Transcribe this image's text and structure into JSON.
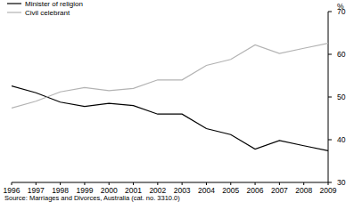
{
  "chart_data": {
    "type": "line",
    "y_label": "%",
    "source": "Source: Marriages and Divorces, Australia (cat. no. 3310.0)",
    "x": [
      1996,
      1997,
      1998,
      1999,
      2000,
      2001,
      2002,
      2003,
      2004,
      2005,
      2006,
      2007,
      2008,
      2009
    ],
    "xlim": [
      1996,
      2009
    ],
    "xticks": [
      1996,
      1997,
      1998,
      1999,
      2000,
      2001,
      2002,
      2003,
      2004,
      2005,
      2006,
      2007,
      2008,
      2009
    ],
    "ylim": [
      30,
      70
    ],
    "yticks": [
      30,
      40,
      50,
      60,
      70
    ],
    "grid": false,
    "legend": "top-left",
    "series": [
      {
        "name": "Minister of religion",
        "color": "#000000",
        "values": [
          52.6,
          51.0,
          48.8,
          47.8,
          48.5,
          48.0,
          46.0,
          46.0,
          42.6,
          41.2,
          37.8,
          39.8,
          38.6,
          37.4
        ]
      },
      {
        "name": "Civil celebrant",
        "color": "#b3b3b3",
        "values": [
          47.4,
          49.0,
          51.2,
          52.2,
          51.5,
          52.0,
          54.0,
          54.0,
          57.4,
          58.8,
          62.2,
          60.2,
          61.4,
          62.6
        ]
      }
    ]
  }
}
